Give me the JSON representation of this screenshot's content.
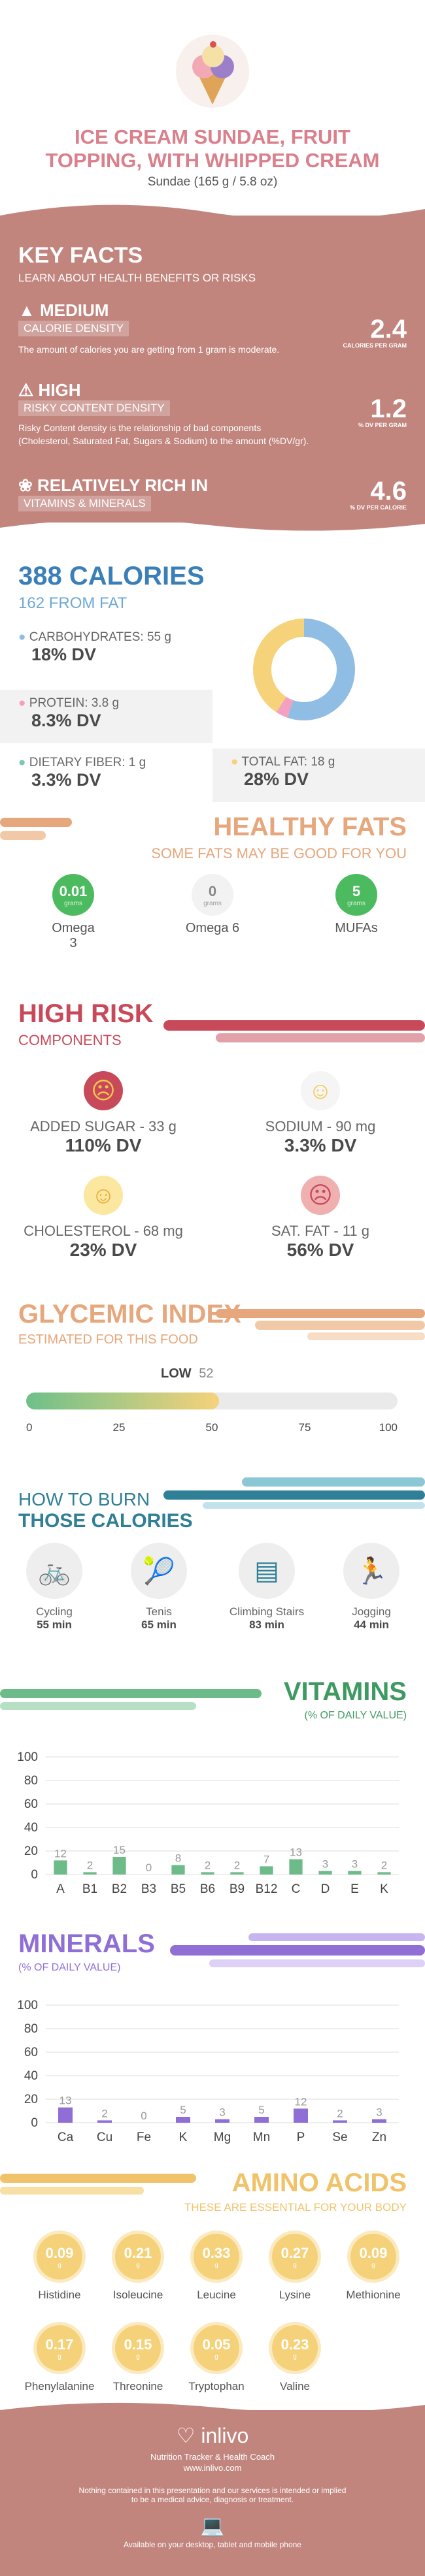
{
  "header": {
    "title_line1": "ICE CREAM SUNDAE, FRUIT",
    "title_line2": "TOPPING, WITH WHIPPED CREAM",
    "serving": "Sundae (165 g / 5.8 oz)"
  },
  "key_facts": {
    "title": "KEY FACTS",
    "subtitle": "LEARN ABOUT HEALTH BENEFITS OR RISKS",
    "items": [
      {
        "level": "MEDIUM",
        "name": "CALORIE DENSITY",
        "value": "2.4",
        "unit": "CALORIES PER GRAM",
        "desc": "The amount of calories you are getting from 1 gram is moderate.",
        "desc2": ""
      },
      {
        "level": "HIGH",
        "name": "RISKY CONTENT DENSITY",
        "value": "1.2",
        "unit": "% DV PER GRAM",
        "desc": "Risky Content density is the relationship of bad components",
        "desc2": "(Cholesterol, Saturated Fat, Sugars & Sodium) to the amount (%DV/gr)."
      },
      {
        "level": "RELATIVELY RICH  IN",
        "name": "VITAMINS & MINERALS",
        "value": "4.6",
        "unit": "% DV PER CALORIE",
        "desc": "",
        "desc2": ""
      }
    ]
  },
  "calories": {
    "title": "388 CALORIES",
    "from_fat": "162 FROM FAT",
    "carb_label": "CARBOHYDRATES: 55 g",
    "carb_dv": "18% DV",
    "protein_label": "PROTEIN: 3.8 g",
    "protein_dv": "8.3% DV",
    "fiber_label": "DIETARY FIBER: 1 g",
    "fiber_dv": "3.3% DV",
    "fat_label": "TOTAL FAT: 18 g",
    "fat_dv": "28% DV",
    "donut": {
      "carbohydrates": 56.7,
      "protein": 3.9,
      "fat": 41.8
    },
    "colors": {
      "carb": "#8fbde3",
      "protein": "#f4a0c0",
      "fat": "#f6d27a",
      "fiber": "#7fc7a9"
    }
  },
  "healthy_fats": {
    "title": "HEALTHY FATS",
    "subtitle": "SOME FATS MAY BE GOOD FOR YOU",
    "items": [
      {
        "value": "0.01",
        "unit": "grams",
        "name": "Omega 3"
      },
      {
        "value": "0",
        "unit": "grams",
        "name": "Omega 6"
      },
      {
        "value": "5",
        "unit": "grams",
        "name": "MUFAs"
      }
    ]
  },
  "high_risk": {
    "title": "HIGH RISK",
    "subtitle": "COMPONENTS",
    "items": [
      {
        "label": "ADDED SUGAR - 33 g",
        "dv": "110% DV",
        "icon": "sad-face-icon"
      },
      {
        "label": "SODIUM - 90 mg",
        "dv": "3.3% DV",
        "icon": "happy-face-icon"
      },
      {
        "label": "CHOLESTEROL - 68 mg",
        "dv": "23% DV",
        "icon": "happy-face-icon"
      },
      {
        "label": "SAT. FAT - 11 g",
        "dv": "56% DV",
        "icon": "sad-face-icon"
      }
    ]
  },
  "glycemic": {
    "title": "GLYCEMIC INDEX",
    "subtitle": "ESTIMATED FOR THIS FOOD",
    "level": "LOW",
    "value": "52",
    "value_num": 52,
    "ticks": [
      "0",
      "25",
      "50",
      "75",
      "100"
    ]
  },
  "burn": {
    "title1": "HOW TO BURN",
    "title2": "THOSE CALORIES",
    "items": [
      {
        "name": "Cycling",
        "time": "55 min"
      },
      {
        "name": "Tenis",
        "time": "65 min"
      },
      {
        "name": "Climbing Stairs",
        "time": "83 min"
      },
      {
        "name": "Jogging",
        "time": "44 min"
      }
    ]
  },
  "vitamins": {
    "title": "VITAMINS",
    "subtitle": "(% OF DAILY VALUE)",
    "yticks": [
      "100",
      "80",
      "60",
      "40",
      "20",
      "0"
    ]
  },
  "minerals": {
    "title": "MINERALS",
    "subtitle": "(% OF DAILY VALUE)",
    "yticks": [
      "100",
      "80",
      "60",
      "40",
      "20",
      "0"
    ]
  },
  "chart_data": [
    {
      "type": "bar",
      "title": "VITAMINS",
      "ylabel": "(% OF DAILY VALUE)",
      "categories": [
        "A",
        "B1",
        "B2",
        "B3",
        "B5",
        "B6",
        "B9",
        "B12",
        "C",
        "D",
        "E",
        "K"
      ],
      "values": [
        12,
        2,
        15,
        0,
        8,
        2,
        2,
        7,
        13,
        3,
        3,
        2
      ],
      "ylim": [
        0,
        100
      ],
      "color": "#6dbb88"
    },
    {
      "type": "bar",
      "title": "MINERALS",
      "ylabel": "(% OF DAILY VALUE)",
      "categories": [
        "Ca",
        "Cu",
        "Fe",
        "K",
        "Mg",
        "Mn",
        "P",
        "Se",
        "Zn"
      ],
      "values": [
        13,
        2,
        0,
        5,
        3,
        5,
        12,
        2,
        3
      ],
      "ylim": [
        0,
        100
      ],
      "color": "#8f6fd6"
    }
  ],
  "amino": {
    "title": "AMINO ACIDS",
    "subtitle": "THESE ARE ESSENTIAL FOR YOUR BODY",
    "unit": "g",
    "items": [
      {
        "value": "0.09",
        "name": "Histidine"
      },
      {
        "value": "0.21",
        "name": "Isoleucine"
      },
      {
        "value": "0.33",
        "name": "Leucine"
      },
      {
        "value": "0.27",
        "name": "Lysine"
      },
      {
        "value": "0.09",
        "name": "Methionine"
      },
      {
        "value": "0.17",
        "name": "Phenylalanine"
      },
      {
        "value": "0.15",
        "name": "Threonine"
      },
      {
        "value": "0.05",
        "name": "Tryptophan"
      },
      {
        "value": "0.23",
        "name": "Valine"
      }
    ]
  },
  "footer": {
    "brand": "inlivo",
    "tagline": "Nutrition Tracker & Health Coach",
    "url": "www.inlivo.com",
    "disclaimer1": "Nothing contained in this presentation and our services is intended or implied",
    "disclaimer2": "to be a medical advice, diagnosis or treatment.",
    "available": "Available on your desktop, tablet and mobile phone"
  }
}
